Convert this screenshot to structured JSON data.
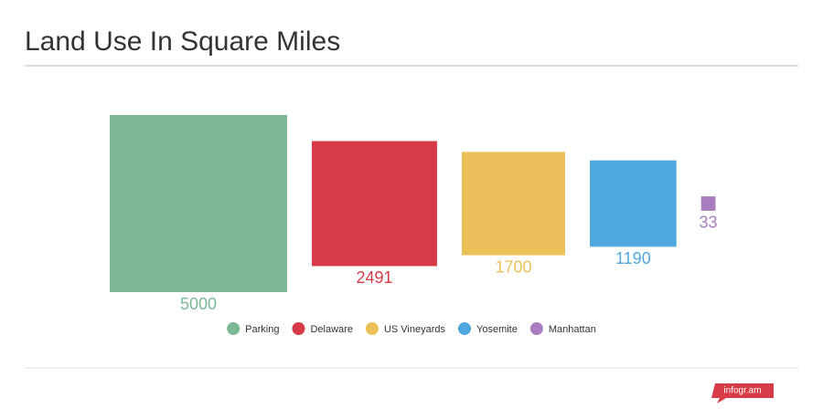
{
  "chart_data": {
    "type": "square",
    "title": "Land Use In Square Miles",
    "categories": [
      "Parking",
      "Delaware",
      "US Vineyards",
      "Yosemite",
      "Manhattan"
    ],
    "values": [
      5000,
      2491,
      1700,
      1190,
      33
    ],
    "colors": [
      "#7cb894",
      "#d63b47",
      "#ecc058",
      "#4fa8de",
      "#a97dbf"
    ],
    "legend": "bottom"
  },
  "footer": {
    "logo": "infogr.am"
  }
}
